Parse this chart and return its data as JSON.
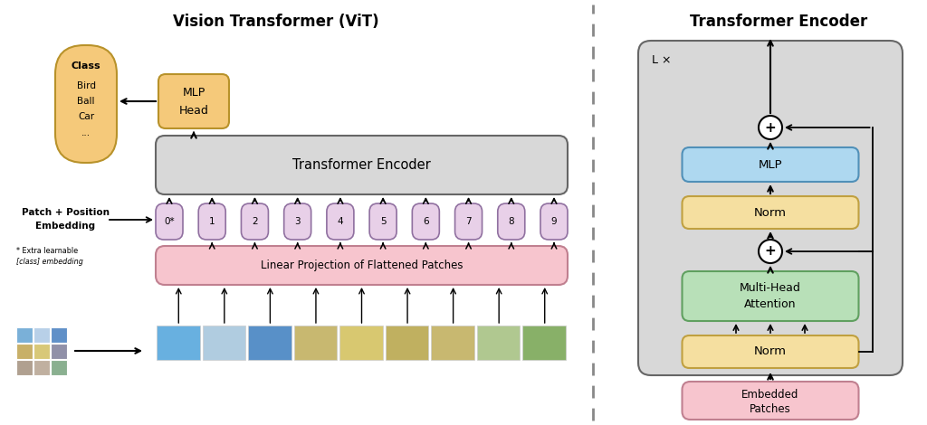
{
  "title_left": "Vision Transformer (ViT)",
  "title_right": "Transformer Encoder",
  "bg_color": "#ffffff",
  "class_ellipse_color": "#f5c97a",
  "class_ellipse_edge": "#b8922a",
  "mlp_head_color": "#f5c97a",
  "mlp_head_edge": "#b8922a",
  "transformer_encoder_color": "#d8d8d8",
  "transformer_encoder_edge": "#666666",
  "linear_proj_color": "#f7c5ce",
  "linear_proj_edge": "#c08090",
  "embed_patch_color": "#f7c5ce",
  "embed_patch_edge": "#c08090",
  "token_color": "#e8d0e8",
  "token_edge": "#9070a0",
  "mlp_block_color": "#aed8f0",
  "mlp_block_edge": "#5090b8",
  "norm_color": "#f5dfa0",
  "norm_edge": "#c0a040",
  "mha_color": "#b8e0b8",
  "mha_edge": "#60a060",
  "outer_box_color": "#d8d8d8",
  "outer_box_edge": "#666666",
  "dashed_line_color": "#888888",
  "arrow_color": "#111111",
  "token_labels": [
    "0*",
    "1",
    "2",
    "3",
    "4",
    "5",
    "6",
    "7",
    "8",
    "9"
  ]
}
